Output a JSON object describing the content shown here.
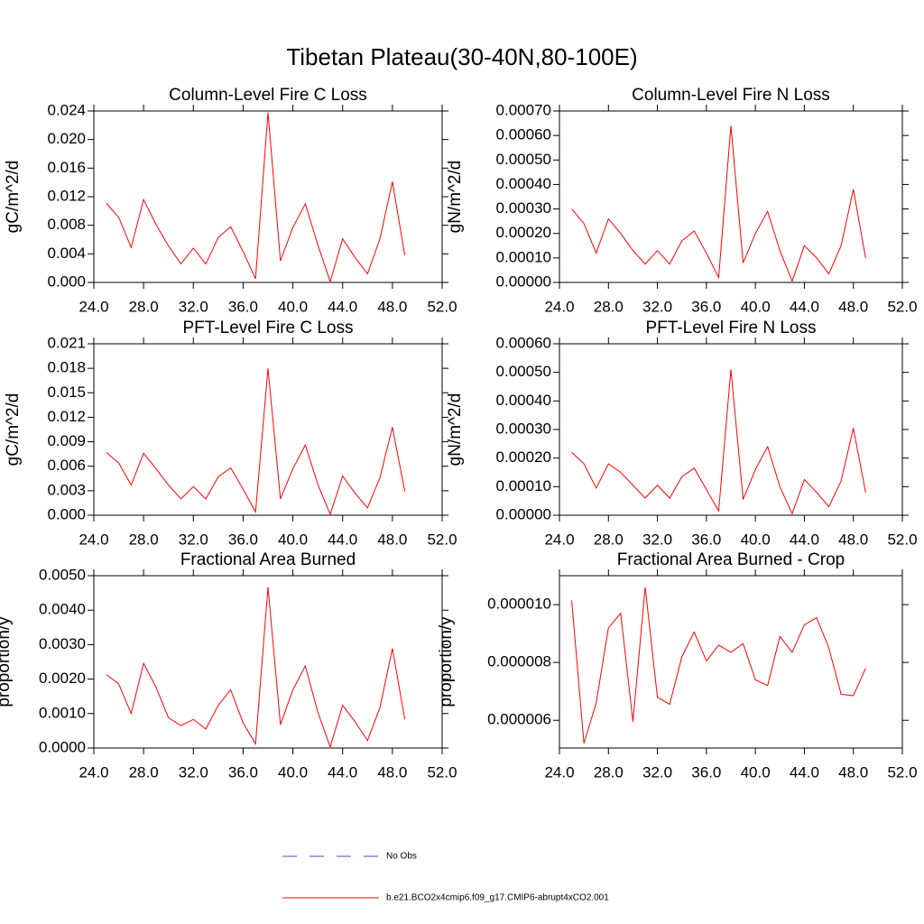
{
  "title": "Tibetan Plateau(30-40N,80-100E)",
  "legend": [
    {
      "name": "No Obs",
      "color": "#3d4fb8",
      "style": "dashed"
    },
    {
      "name": "b.e21.BCO2x4cmip6.f09_g17.CMIP6-abrupt4xCO2.001",
      "color": "#ff0000",
      "style": "solid"
    }
  ],
  "chart_data": [
    {
      "type": "line",
      "title": "Column-Level Fire C Loss",
      "y_label": "gC/m^2/d",
      "x": [
        25,
        26,
        27,
        28,
        29,
        30,
        31,
        32,
        33,
        34,
        35,
        36,
        37,
        38,
        39,
        40,
        41,
        42,
        43,
        44,
        45,
        46,
        47,
        48,
        49
      ],
      "series": [
        {
          "color": "#ff0000",
          "values": [
            0.0111,
            0.0091,
            0.0049,
            0.0116,
            0.0081,
            0.0051,
            0.0026,
            0.0048,
            0.0026,
            0.0063,
            0.0078,
            0.0043,
            0.0005,
            0.0238,
            0.003,
            0.0077,
            0.011,
            0.0053,
            0.0001,
            0.0061,
            0.0035,
            0.0012,
            0.0061,
            0.0141,
            0.0038
          ]
        }
      ],
      "xlim": [
        24,
        52
      ],
      "xticks": [
        {
          "value": 24,
          "label": "24.0"
        },
        {
          "value": 28,
          "label": "28.0"
        },
        {
          "value": 32,
          "label": "32.0"
        },
        {
          "value": 36,
          "label": "36.0"
        },
        {
          "value": 40,
          "label": "40.0"
        },
        {
          "value": 44,
          "label": "44.0"
        },
        {
          "value": 48,
          "label": "48.0"
        },
        {
          "value": 52,
          "label": "52.0"
        }
      ],
      "ylim": [
        0,
        0.024
      ],
      "yticks": [
        {
          "value": 0,
          "label": "0.000"
        },
        {
          "value": 0.004,
          "label": "0.004"
        },
        {
          "value": 0.008,
          "label": "0.008"
        },
        {
          "value": 0.012,
          "label": "0.012"
        },
        {
          "value": 0.016,
          "label": "0.016"
        },
        {
          "value": 0.02,
          "label": "0.020"
        },
        {
          "value": 0.024,
          "label": "0.024"
        }
      ]
    },
    {
      "type": "line",
      "title": "Column-Level Fire N Loss",
      "y_label": "gN/m^2/d",
      "x": [
        25,
        26,
        27,
        28,
        29,
        30,
        31,
        32,
        33,
        34,
        35,
        36,
        37,
        38,
        39,
        40,
        41,
        42,
        43,
        44,
        45,
        46,
        47,
        48,
        49
      ],
      "series": [
        {
          "color": "#ff0000",
          "values": [
            0.0003,
            0.00024,
            0.00012,
            0.00026,
            0.0002,
            0.00013,
            7.5e-05,
            0.00013,
            7.5e-05,
            0.00017,
            0.00021,
            0.00012,
            2e-05,
            0.00064,
            8e-05,
            0.0002,
            0.00029,
            0.00013,
            5e-06,
            0.00015,
            0.0001,
            3.5e-05,
            0.00015,
            0.00038,
            0.0001
          ]
        }
      ],
      "xlim": [
        24,
        52
      ],
      "xticks": [
        {
          "value": 24,
          "label": "24.0"
        },
        {
          "value": 28,
          "label": "28.0"
        },
        {
          "value": 32,
          "label": "32.0"
        },
        {
          "value": 36,
          "label": "36.0"
        },
        {
          "value": 40,
          "label": "40.0"
        },
        {
          "value": 44,
          "label": "44.0"
        },
        {
          "value": 48,
          "label": "48.0"
        },
        {
          "value": 52,
          "label": "52.0"
        }
      ],
      "ylim": [
        0,
        0.0007
      ],
      "yticks": [
        {
          "value": 0,
          "label": "0.00000"
        },
        {
          "value": 0.0001,
          "label": "0.00010"
        },
        {
          "value": 0.0002,
          "label": "0.00020"
        },
        {
          "value": 0.0003,
          "label": "0.00030"
        },
        {
          "value": 0.0004,
          "label": "0.00040"
        },
        {
          "value": 0.0005,
          "label": "0.00050"
        },
        {
          "value": 0.0006,
          "label": "0.00060"
        },
        {
          "value": 0.0007,
          "label": "0.00070"
        }
      ]
    },
    {
      "type": "line",
      "title": "PFT-Level Fire C Loss",
      "y_label": "gC/m^2/d",
      "x": [
        25,
        26,
        27,
        28,
        29,
        30,
        31,
        32,
        33,
        34,
        35,
        36,
        37,
        38,
        39,
        40,
        41,
        42,
        43,
        44,
        45,
        46,
        47,
        48,
        49
      ],
      "series": [
        {
          "color": "#ff0000",
          "values": [
            0.0077,
            0.0064,
            0.0037,
            0.0076,
            0.0057,
            0.0037,
            0.002,
            0.0035,
            0.002,
            0.0047,
            0.0058,
            0.0032,
            0.0004,
            0.018,
            0.002,
            0.0057,
            0.0086,
            0.0038,
            0.0001,
            0.0048,
            0.0027,
            0.0009,
            0.0046,
            0.0108,
            0.0029
          ]
        }
      ],
      "xlim": [
        24,
        52
      ],
      "xticks": [
        {
          "value": 24,
          "label": "24.0"
        },
        {
          "value": 28,
          "label": "28.0"
        },
        {
          "value": 32,
          "label": "32.0"
        },
        {
          "value": 36,
          "label": "36.0"
        },
        {
          "value": 40,
          "label": "40.0"
        },
        {
          "value": 44,
          "label": "44.0"
        },
        {
          "value": 48,
          "label": "48.0"
        },
        {
          "value": 52,
          "label": "52.0"
        }
      ],
      "ylim": [
        0,
        0.021
      ],
      "yticks": [
        {
          "value": 0,
          "label": "0.000"
        },
        {
          "value": 0.003,
          "label": "0.003"
        },
        {
          "value": 0.006,
          "label": "0.006"
        },
        {
          "value": 0.009,
          "label": "0.009"
        },
        {
          "value": 0.012,
          "label": "0.012"
        },
        {
          "value": 0.015,
          "label": "0.015"
        },
        {
          "value": 0.018,
          "label": "0.018"
        },
        {
          "value": 0.021,
          "label": "0.021"
        }
      ]
    },
    {
      "type": "line",
      "title": "PFT-Level Fire N Loss",
      "y_label": "gN/m^2/d",
      "x": [
        25,
        26,
        27,
        28,
        29,
        30,
        31,
        32,
        33,
        34,
        35,
        36,
        37,
        38,
        39,
        40,
        41,
        42,
        43,
        44,
        45,
        46,
        47,
        48,
        49
      ],
      "series": [
        {
          "color": "#ff0000",
          "values": [
            0.00022,
            0.00018,
            9.5e-05,
            0.00018,
            0.00015,
            0.000105,
            6e-05,
            0.000105,
            6e-05,
            0.000135,
            0.000165,
            9e-05,
            1.5e-05,
            0.00051,
            5.5e-05,
            0.00016,
            0.00024,
            0.0001,
            5e-06,
            0.000125,
            8e-05,
            3e-05,
            0.00012,
            0.000305,
            8e-05
          ]
        }
      ],
      "xlim": [
        24,
        52
      ],
      "xticks": [
        {
          "value": 24,
          "label": "24.0"
        },
        {
          "value": 28,
          "label": "28.0"
        },
        {
          "value": 32,
          "label": "32.0"
        },
        {
          "value": 36,
          "label": "36.0"
        },
        {
          "value": 40,
          "label": "40.0"
        },
        {
          "value": 44,
          "label": "44.0"
        },
        {
          "value": 48,
          "label": "48.0"
        },
        {
          "value": 52,
          "label": "52.0"
        }
      ],
      "ylim": [
        0,
        0.0006
      ],
      "yticks": [
        {
          "value": 0,
          "label": "0.00000"
        },
        {
          "value": 0.0001,
          "label": "0.00010"
        },
        {
          "value": 0.0002,
          "label": "0.00020"
        },
        {
          "value": 0.0003,
          "label": "0.00030"
        },
        {
          "value": 0.0004,
          "label": "0.00040"
        },
        {
          "value": 0.0005,
          "label": "0.00050"
        },
        {
          "value": 0.0006,
          "label": "0.00060"
        }
      ]
    },
    {
      "type": "line",
      "title": "Fractional Area Burned",
      "y_label": "proportion/y",
      "x": [
        25,
        26,
        27,
        28,
        29,
        30,
        31,
        32,
        33,
        34,
        35,
        36,
        37,
        38,
        39,
        40,
        41,
        42,
        43,
        44,
        45,
        46,
        47,
        48,
        49
      ],
      "series": [
        {
          "color": "#ff0000",
          "values": [
            0.00213,
            0.00186,
            0.001,
            0.00246,
            0.00176,
            0.00088,
            0.00065,
            0.00083,
            0.00055,
            0.00124,
            0.00169,
            0.00073,
            0.00012,
            0.00467,
            0.00068,
            0.00169,
            0.00238,
            0.00105,
            3e-05,
            0.00124,
            0.00076,
            0.00022,
            0.00117,
            0.00289,
            0.00083
          ]
        }
      ],
      "xlim": [
        24,
        52
      ],
      "xticks": [
        {
          "value": 24,
          "label": "24.0"
        },
        {
          "value": 28,
          "label": "28.0"
        },
        {
          "value": 32,
          "label": "32.0"
        },
        {
          "value": 36,
          "label": "36.0"
        },
        {
          "value": 40,
          "label": "40.0"
        },
        {
          "value": 44,
          "label": "44.0"
        },
        {
          "value": 48,
          "label": "48.0"
        },
        {
          "value": 52,
          "label": "52.0"
        }
      ],
      "ylim": [
        0,
        0.005
      ],
      "yticks": [
        {
          "value": 0,
          "label": "0.0000"
        },
        {
          "value": 0.001,
          "label": "0.0010"
        },
        {
          "value": 0.002,
          "label": "0.0020"
        },
        {
          "value": 0.003,
          "label": "0.0030"
        },
        {
          "value": 0.004,
          "label": "0.0040"
        },
        {
          "value": 0.005,
          "label": "0.0050"
        }
      ]
    },
    {
      "type": "line",
      "title": "Fractional Area Burned - Crop",
      "y_label": "proportion/y",
      "x": [
        25,
        26,
        27,
        28,
        29,
        30,
        31,
        32,
        33,
        34,
        35,
        36,
        37,
        38,
        39,
        40,
        41,
        42,
        43,
        44,
        45,
        46,
        47,
        48,
        49
      ],
      "series": [
        {
          "color": "#ff0000",
          "values": [
            1.015e-05,
            5.2e-06,
            6.6e-06,
            9.2e-06,
            9.7e-06,
            5.95e-06,
            1.06e-05,
            6.8e-06,
            6.55e-06,
            8.2e-06,
            9.05e-06,
            8.05e-06,
            8.6e-06,
            8.35e-06,
            8.65e-06,
            7.4e-06,
            7.2e-06,
            8.9e-06,
            8.35e-06,
            9.3e-06,
            9.55e-06,
            8.5e-06,
            6.9e-06,
            6.85e-06,
            7.8e-06
          ]
        }
      ],
      "xlim": [
        24,
        52
      ],
      "xticks": [
        {
          "value": 24,
          "label": "24.0"
        },
        {
          "value": 28,
          "label": "28.0"
        },
        {
          "value": 32,
          "label": "32.0"
        },
        {
          "value": 36,
          "label": "36.0"
        },
        {
          "value": 40,
          "label": "40.0"
        },
        {
          "value": 44,
          "label": "44.0"
        },
        {
          "value": 48,
          "label": "48.0"
        },
        {
          "value": 52,
          "label": "52.0"
        }
      ],
      "ylim": [
        5.04e-06,
        1.1e-05
      ],
      "yticks": [
        {
          "value": 6e-06,
          "label": "0.000006"
        },
        {
          "value": 8e-06,
          "label": "0.000008"
        },
        {
          "value": 1e-05,
          "label": "0.000010"
        }
      ]
    }
  ]
}
